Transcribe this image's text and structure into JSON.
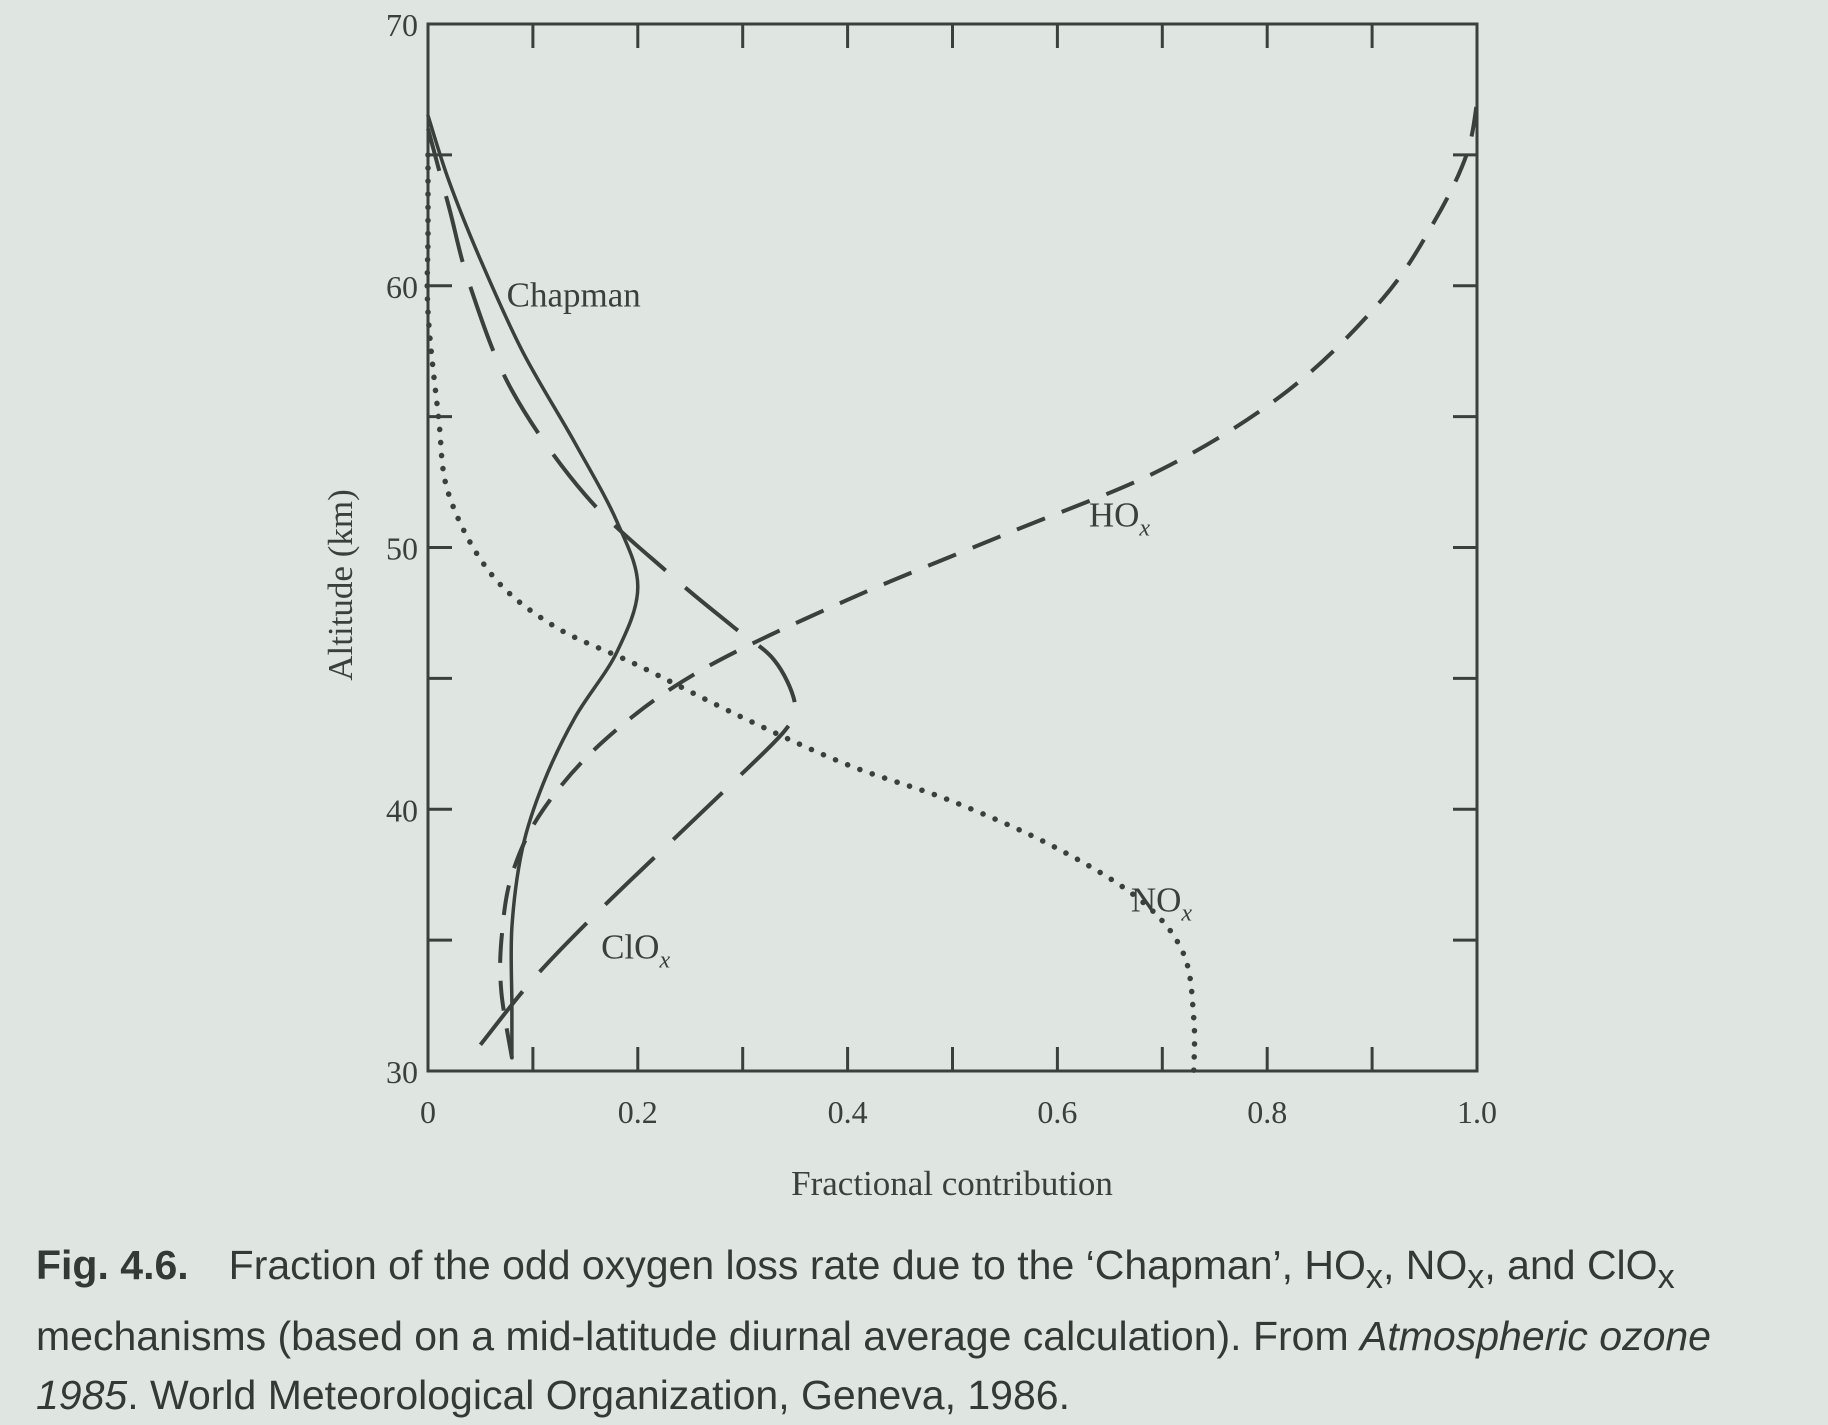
{
  "chart_data": {
    "type": "line",
    "xlabel": "Fractional contribution",
    "ylabel": "Altitude (km)",
    "xlim": [
      0,
      1.0
    ],
    "ylim": [
      30,
      70
    ],
    "x_tick_labels": [
      "0",
      "0.2",
      "0.4",
      "0.6",
      "0.8",
      "1.0"
    ],
    "y_tick_labels": [
      "30",
      "40",
      "50",
      "60",
      "70"
    ],
    "series": [
      {
        "name": "Chapman",
        "style": "solid",
        "points": [
          [
            0.0,
            66.5
          ],
          [
            0.02,
            64
          ],
          [
            0.05,
            61
          ],
          [
            0.09,
            57.5
          ],
          [
            0.14,
            54
          ],
          [
            0.18,
            51
          ],
          [
            0.2,
            48.5
          ],
          [
            0.18,
            46
          ],
          [
            0.14,
            43.5
          ],
          [
            0.11,
            41
          ],
          [
            0.09,
            38.5
          ],
          [
            0.08,
            35.5
          ],
          [
            0.08,
            32.5
          ],
          [
            0.08,
            30.5
          ]
        ]
      },
      {
        "name": "HOx",
        "style": "short-dash",
        "points": [
          [
            0.08,
            30.5
          ],
          [
            0.07,
            33
          ],
          [
            0.07,
            35
          ],
          [
            0.08,
            37.5
          ],
          [
            0.11,
            40
          ],
          [
            0.17,
            42.7
          ],
          [
            0.26,
            45.3
          ],
          [
            0.4,
            48
          ],
          [
            0.55,
            50.5
          ],
          [
            0.7,
            53
          ],
          [
            0.82,
            56
          ],
          [
            0.91,
            59.5
          ],
          [
            0.96,
            62.5
          ],
          [
            0.99,
            65
          ],
          [
            1.0,
            67
          ]
        ]
      },
      {
        "name": "NOx",
        "style": "dotted",
        "points": [
          [
            0.0,
            65
          ],
          [
            0.0,
            62
          ],
          [
            0.0,
            59
          ],
          [
            0.01,
            55
          ],
          [
            0.02,
            52
          ],
          [
            0.06,
            49
          ],
          [
            0.12,
            47
          ],
          [
            0.2,
            45.5
          ],
          [
            0.3,
            43.5
          ],
          [
            0.4,
            41.7
          ],
          [
            0.5,
            40.3
          ],
          [
            0.6,
            38.5
          ],
          [
            0.68,
            36.5
          ],
          [
            0.72,
            34.5
          ],
          [
            0.73,
            32
          ],
          [
            0.73,
            30
          ]
        ]
      },
      {
        "name": "ClOx",
        "style": "long-dash",
        "points": [
          [
            0.05,
            31
          ],
          [
            0.1,
            33.5
          ],
          [
            0.16,
            36
          ],
          [
            0.23,
            38.7
          ],
          [
            0.29,
            41
          ],
          [
            0.34,
            43
          ],
          [
            0.35,
            44
          ],
          [
            0.33,
            45.7
          ],
          [
            0.29,
            47
          ],
          [
            0.23,
            49
          ],
          [
            0.15,
            52
          ],
          [
            0.08,
            56
          ],
          [
            0.04,
            60
          ],
          [
            0.02,
            63
          ],
          [
            0.0,
            66
          ]
        ]
      }
    ],
    "annotations": [
      {
        "text": "Chapman",
        "x": 0.075,
        "y": 59.2
      },
      {
        "text": "HO",
        "sub": "x",
        "x": 0.63,
        "y": 50.8
      },
      {
        "text": "NO",
        "sub": "x",
        "x": 0.67,
        "y": 36.1
      },
      {
        "text": "ClO",
        "sub": "x",
        "x": 0.165,
        "y": 34.3
      }
    ]
  },
  "caption": {
    "label": "Fig. 4.6.",
    "text_1": "Fraction of the odd oxygen loss rate due to the ‘Chapman’, HO",
    "sub_x": "x",
    "text_2": ", NO",
    "text_3": ", and ClO",
    "text_4": " mechanisms (based on a mid-latitude diurnal average calculation). From ",
    "source_title": "Atmospheric ozone 1985",
    "text_5": ". World Meteorological Organization, Geneva, 1986."
  },
  "colors": {
    "background": "#dfe5e1",
    "ink": "#3a403b"
  }
}
